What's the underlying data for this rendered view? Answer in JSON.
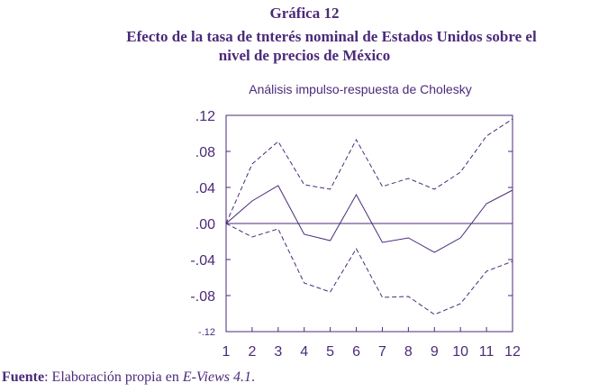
{
  "header": {
    "line1": "Gráfica 12",
    "line2": "Efecto de la tasa de tnterés nominal de Estados Unidos sobre el",
    "line3": "nivel de precios de México"
  },
  "source": {
    "label": "Fuente",
    "text": ": Elaboración propia en ",
    "software": "E-Views 4.1",
    "end": "."
  },
  "chart_data": {
    "type": "line",
    "title": "Análisis impulso-respuesta de Cholesky",
    "x": [
      1,
      2,
      3,
      4,
      5,
      6,
      7,
      8,
      9,
      10,
      11,
      12
    ],
    "ylim": [
      -0.12,
      0.12
    ],
    "yticks": [
      0.12,
      0.08,
      0.04,
      0.0,
      -0.04,
      -0.08,
      -0.12
    ],
    "ytick_labels": [
      ".12",
      ".08",
      ".04",
      ".00",
      "-.04",
      "-.08",
      "-.12"
    ],
    "xtick_labels": [
      "1",
      "2",
      "3",
      "4",
      "5",
      "6",
      "7",
      "8",
      "9",
      "10",
      "11",
      "12"
    ],
    "zero_line": true,
    "grid": false,
    "colors": {
      "line": "#4b2a7a",
      "text": "#4b2a7a"
    },
    "series": [
      {
        "style": "solid",
        "values": [
          0.0,
          0.025,
          0.042,
          -0.012,
          -0.019,
          0.032,
          -0.021,
          -0.016,
          -0.032,
          -0.016,
          0.022,
          0.037
        ]
      },
      {
        "style": "dashed",
        "values": [
          0.0,
          0.066,
          0.091,
          0.043,
          0.038,
          0.093,
          0.041,
          0.05,
          0.038,
          0.057,
          0.097,
          0.116
        ]
      },
      {
        "style": "dashed",
        "values": [
          0.0,
          -0.015,
          -0.006,
          -0.066,
          -0.076,
          -0.028,
          -0.082,
          -0.081,
          -0.101,
          -0.089,
          -0.053,
          -0.042
        ]
      }
    ]
  }
}
